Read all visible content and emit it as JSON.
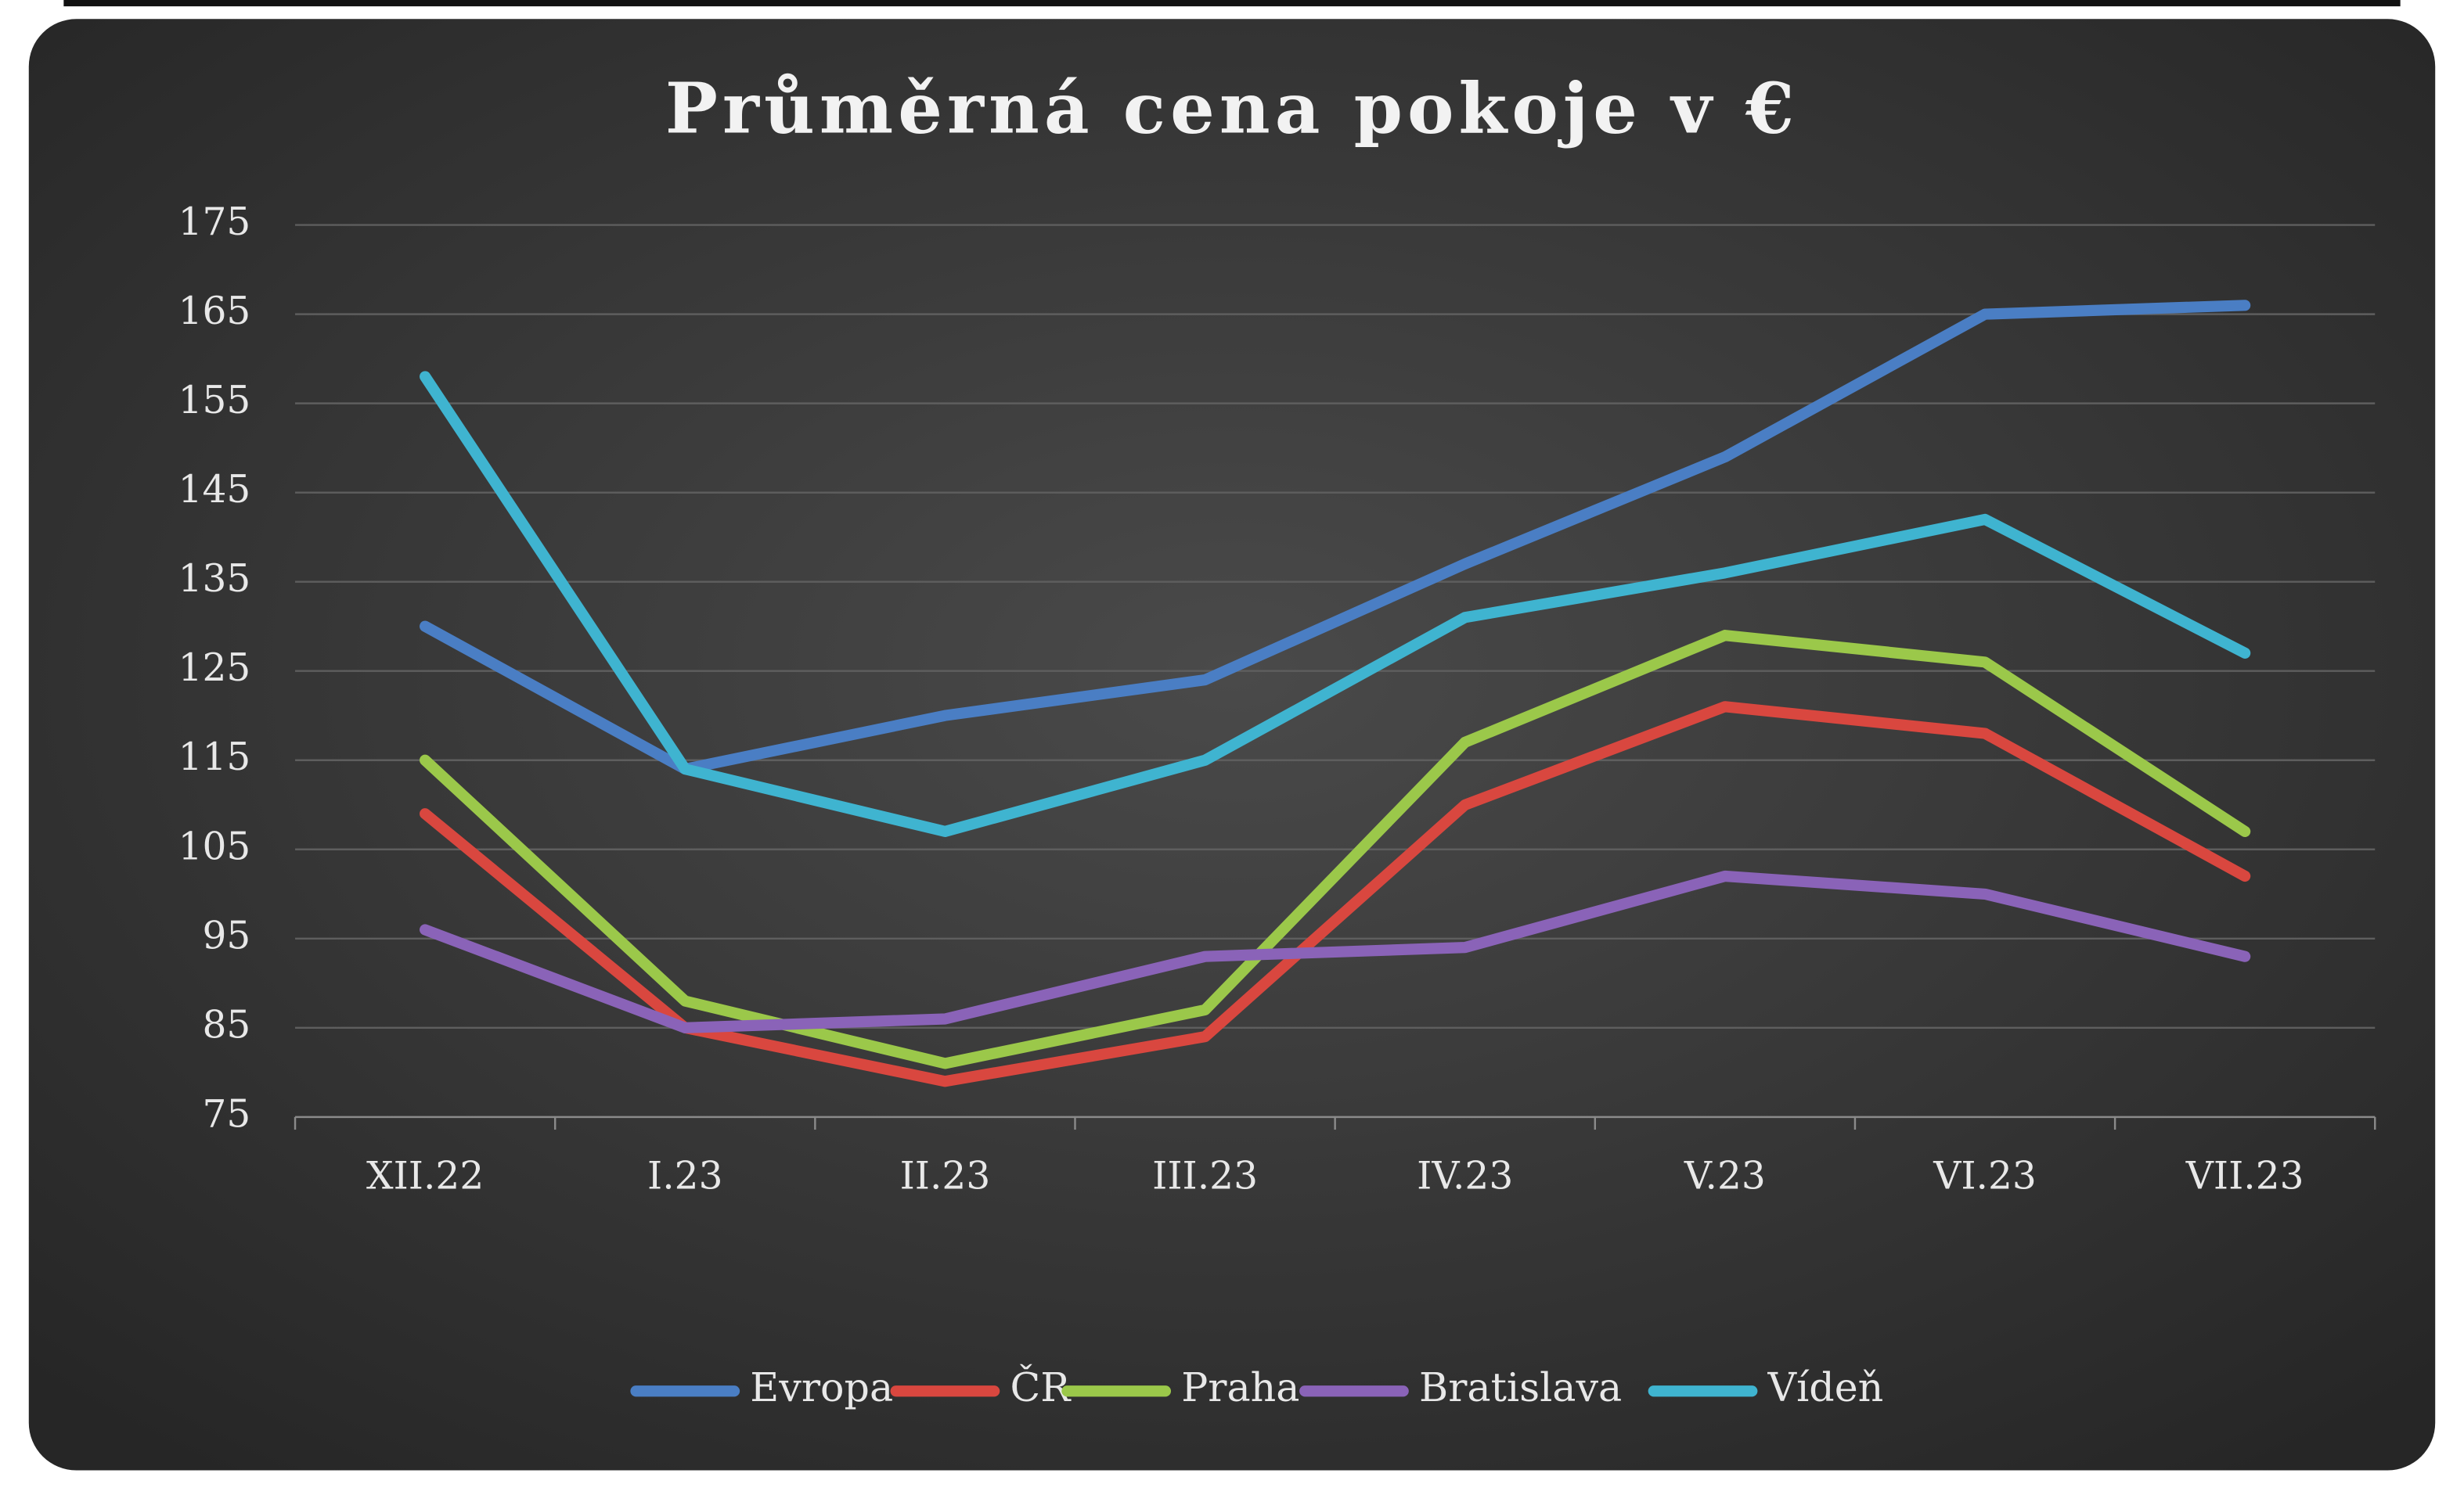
{
  "chart_data": {
    "type": "line",
    "title": "Průměrná cena pokoje v €",
    "categories": [
      "XII.22",
      "I.23",
      "II.23",
      "III.23",
      "IV.23",
      "V.23",
      "VI.23",
      "VII.23"
    ],
    "series": [
      {
        "name": "Evropa",
        "color": "#4a7ec4",
        "values": [
          130,
          114,
          120,
          124,
          137,
          149,
          165,
          166
        ]
      },
      {
        "name": "ČR",
        "color": "#d9473f",
        "values": [
          109,
          85,
          79,
          84,
          110,
          121,
          118,
          102
        ]
      },
      {
        "name": "Praha",
        "color": "#9bc84a",
        "values": [
          115,
          88,
          81,
          87,
          117,
          129,
          126,
          107
        ]
      },
      {
        "name": "Bratislava",
        "color": "#8a63b8",
        "values": [
          96,
          85,
          86,
          93,
          94,
          102,
          100,
          93
        ]
      },
      {
        "name": "Vídeň",
        "color": "#3fb4d0",
        "values": [
          158,
          114,
          107,
          115,
          131,
          136,
          142,
          127
        ]
      }
    ],
    "ylim": [
      75,
      175
    ],
    "yticks": [
      75,
      85,
      95,
      105,
      115,
      125,
      135,
      145,
      155,
      165,
      175
    ],
    "grid": true,
    "legend": "bottom"
  }
}
